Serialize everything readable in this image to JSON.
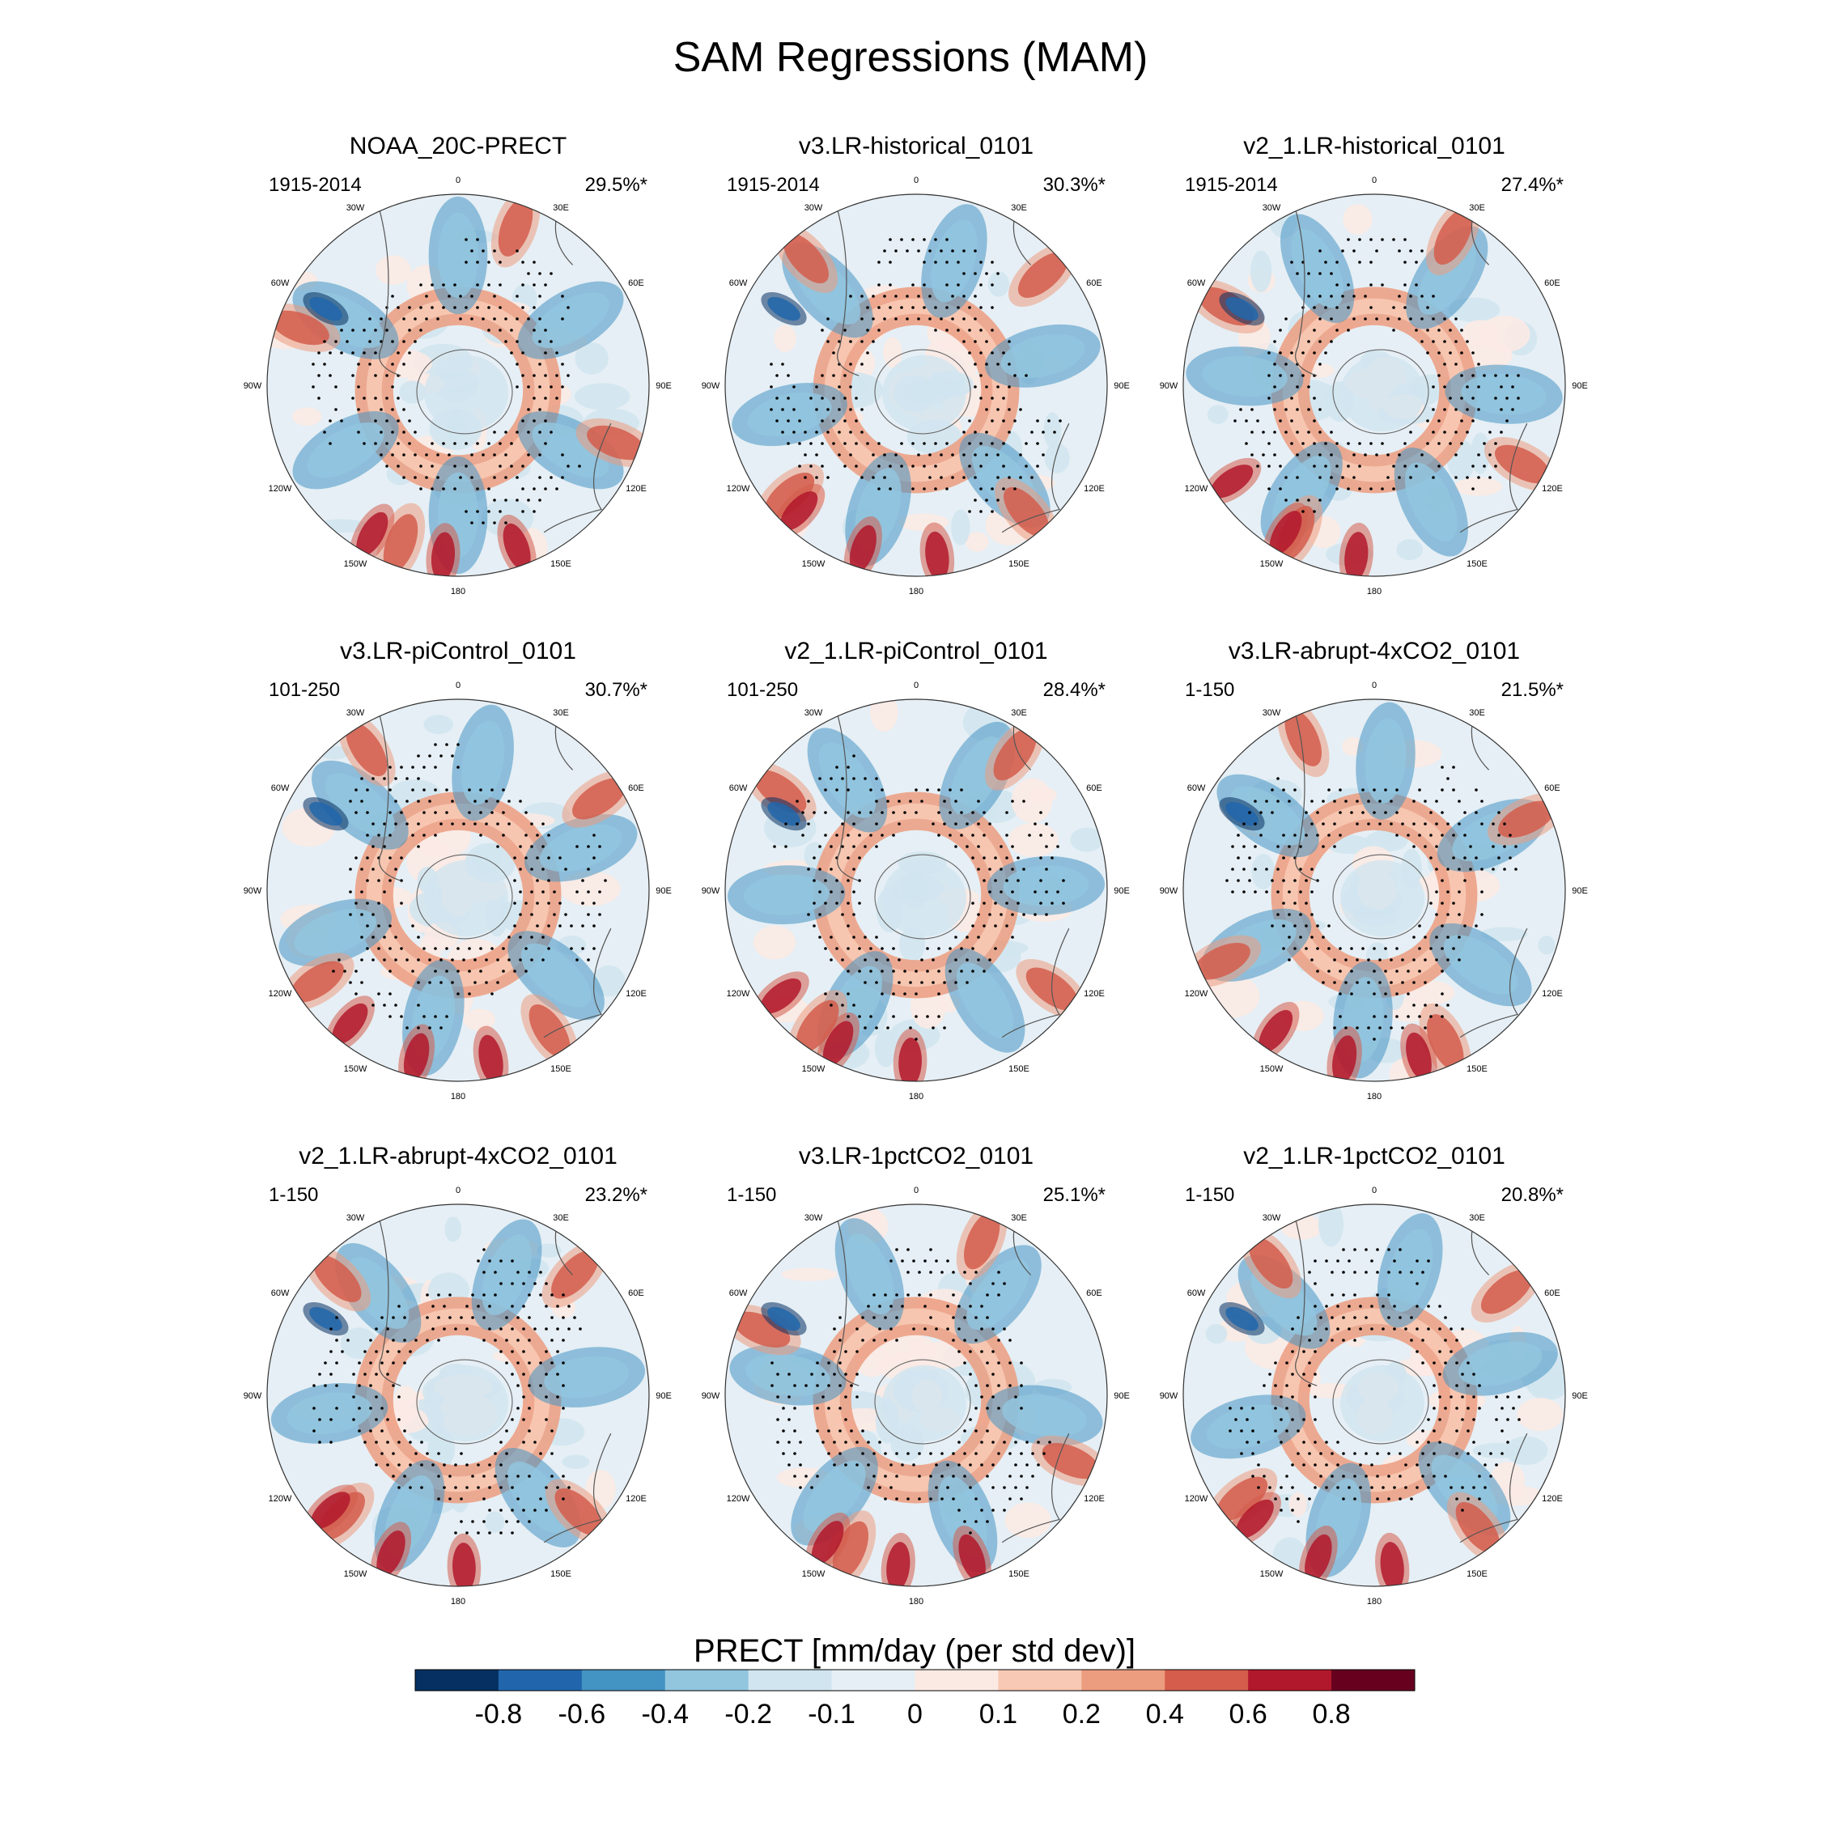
{
  "chart_data": {
    "type": "heatmap",
    "title": "SAM Regressions (MAM)",
    "projection": "south-polar-stereographic",
    "longitude_labels": [
      "0",
      "30E",
      "60E",
      "90E",
      "120E",
      "150E",
      "180",
      "150W",
      "120W",
      "90W",
      "60W",
      "30W"
    ],
    "panels": [
      {
        "name": "NOAA_20C-PRECT",
        "period": "1915-2014",
        "variance": "29.5%*"
      },
      {
        "name": "v3.LR-historical_0101",
        "period": "1915-2014",
        "variance": "30.3%*"
      },
      {
        "name": "v2_1.LR-historical_0101",
        "period": "1915-2014",
        "variance": "27.4%*"
      },
      {
        "name": "v3.LR-piControl_0101",
        "period": "101-250",
        "variance": "30.7%*"
      },
      {
        "name": "v2_1.LR-piControl_0101",
        "period": "101-250",
        "variance": "28.4%*"
      },
      {
        "name": "v3.LR-abrupt-4xCO2_0101",
        "period": "1-150",
        "variance": "21.5%*"
      },
      {
        "name": "v2_1.LR-abrupt-4xCO2_0101",
        "period": "1-150",
        "variance": "23.2%*"
      },
      {
        "name": "v3.LR-1pctCO2_0101",
        "period": "1-150",
        "variance": "25.1%*"
      },
      {
        "name": "v2_1.LR-1pctCO2_0101",
        "period": "1-150",
        "variance": "20.8%*"
      }
    ],
    "colorbar": {
      "title": "PRECT [mm/day (per std dev)]",
      "ticks": [
        "-0.8",
        "-0.6",
        "-0.4",
        "-0.2",
        "-0.1",
        "0",
        "0.1",
        "0.2",
        "0.4",
        "0.6",
        "0.8"
      ],
      "colors": [
        "#053061",
        "#2166ac",
        "#4393c3",
        "#92c5de",
        "#d1e5f0",
        "#e6eff5",
        "#fbeae4",
        "#f8c9b4",
        "#ec9c7f",
        "#d45d4c",
        "#b2182b",
        "#67001f"
      ]
    }
  }
}
